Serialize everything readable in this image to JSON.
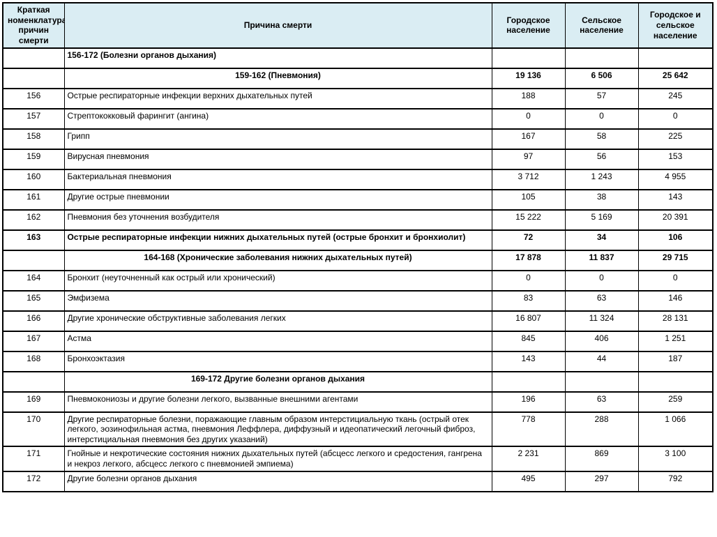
{
  "table": {
    "columns": {
      "code": "Краткая номенклатура причин смерти",
      "cause": "Причина смерти",
      "urban": "Городское население",
      "rural": "Сельское население",
      "total": "Городское и сельское население"
    },
    "header_bg_color": "#daedf3",
    "border_color": "#000000",
    "rows": [
      {
        "type": "section-left",
        "code": "",
        "cause": "156-172 (Болезни органов дыхания)",
        "urban": "",
        "rural": "",
        "total": ""
      },
      {
        "type": "section-center",
        "code": "",
        "cause": "159-162 (Пневмония)",
        "urban": "19 136",
        "rural": "6 506",
        "total": "25 642"
      },
      {
        "type": "normal",
        "code": "156",
        "cause": "Острые респираторные инфекции верхних дыхательных путей",
        "urban": "188",
        "rural": "57",
        "total": "245"
      },
      {
        "type": "normal",
        "code": "157",
        "cause": "Стрептококковый фарингит (ангина)",
        "urban": "0",
        "rural": "0",
        "total": "0"
      },
      {
        "type": "normal",
        "code": "158",
        "cause": "Грипп",
        "urban": "167",
        "rural": "58",
        "total": "225"
      },
      {
        "type": "normal",
        "code": "159",
        "cause": "Вирусная пневмония",
        "urban": "97",
        "rural": "56",
        "total": "153"
      },
      {
        "type": "normal",
        "code": "160",
        "cause": "Бактериальная пневмония",
        "urban": "3 712",
        "rural": "1 243",
        "total": "4 955"
      },
      {
        "type": "normal",
        "code": "161",
        "cause": "Другие острые пневмонии",
        "urban": "105",
        "rural": "38",
        "total": "143"
      },
      {
        "type": "normal",
        "code": "162",
        "cause": "Пневмония без уточнения возбудителя",
        "urban": "15 222",
        "rural": "5 169",
        "total": "20 391"
      },
      {
        "type": "bold",
        "code": "163",
        "cause": "Острые респираторные инфекции нижних дыхательных путей (острые бронхит и бронхиолит)",
        "urban": "72",
        "rural": "34",
        "total": "106"
      },
      {
        "type": "section-center",
        "code": "",
        "cause": "164-168 (Хронические заболевания нижних дыхательных путей)",
        "urban": "17 878",
        "rural": "11 837",
        "total": "29 715"
      },
      {
        "type": "normal",
        "code": "164",
        "cause": "Бронхит (неуточненный как острый или хронический)",
        "urban": "0",
        "rural": "0",
        "total": "0"
      },
      {
        "type": "normal",
        "code": "165",
        "cause": "Эмфизема",
        "urban": "83",
        "rural": "63",
        "total": "146"
      },
      {
        "type": "normal",
        "code": "166",
        "cause": "Другие хронические обструктивные заболевания легких",
        "urban": "16 807",
        "rural": "11 324",
        "total": "28 131"
      },
      {
        "type": "normal",
        "code": "167",
        "cause": "Астма",
        "urban": "845",
        "rural": "406",
        "total": "1 251"
      },
      {
        "type": "normal",
        "code": "168",
        "cause": "Бронхоэктазия",
        "urban": "143",
        "rural": "44",
        "total": "187"
      },
      {
        "type": "section-center",
        "code": "",
        "cause": "169-172 Другие болезни органов дыхания",
        "urban": "",
        "rural": "",
        "total": ""
      },
      {
        "type": "normal",
        "code": "169",
        "cause": "Пневмокониозы и другие болезни легкого, вызванные внешними агентами",
        "urban": "196",
        "rural": "63",
        "total": "259"
      },
      {
        "type": "normal",
        "code": "170",
        "cause": "Другие респираторные болезни, поражающие главным образом интерстициальную ткань (острый отек легкого, эозинофильная астма, пневмония Леффлера, диффузный и идеопатический легочный фиброз, интерстициальная пневмония без других указаний)",
        "urban": "778",
        "rural": "288",
        "total": "1 066"
      },
      {
        "type": "normal",
        "code": "171",
        "cause": "Гнойные и некротические состояния нижних дыхательных путей (абсцесс легкого и средостения, гангрена и некроз легкого, абсцесс легкого с пневмонией эмпиема)",
        "urban": "2 231",
        "rural": "869",
        "total": "3 100"
      },
      {
        "type": "normal",
        "code": "172",
        "cause": "Другие болезни органов дыхания",
        "urban": "495",
        "rural": "297",
        "total": "792"
      }
    ]
  }
}
